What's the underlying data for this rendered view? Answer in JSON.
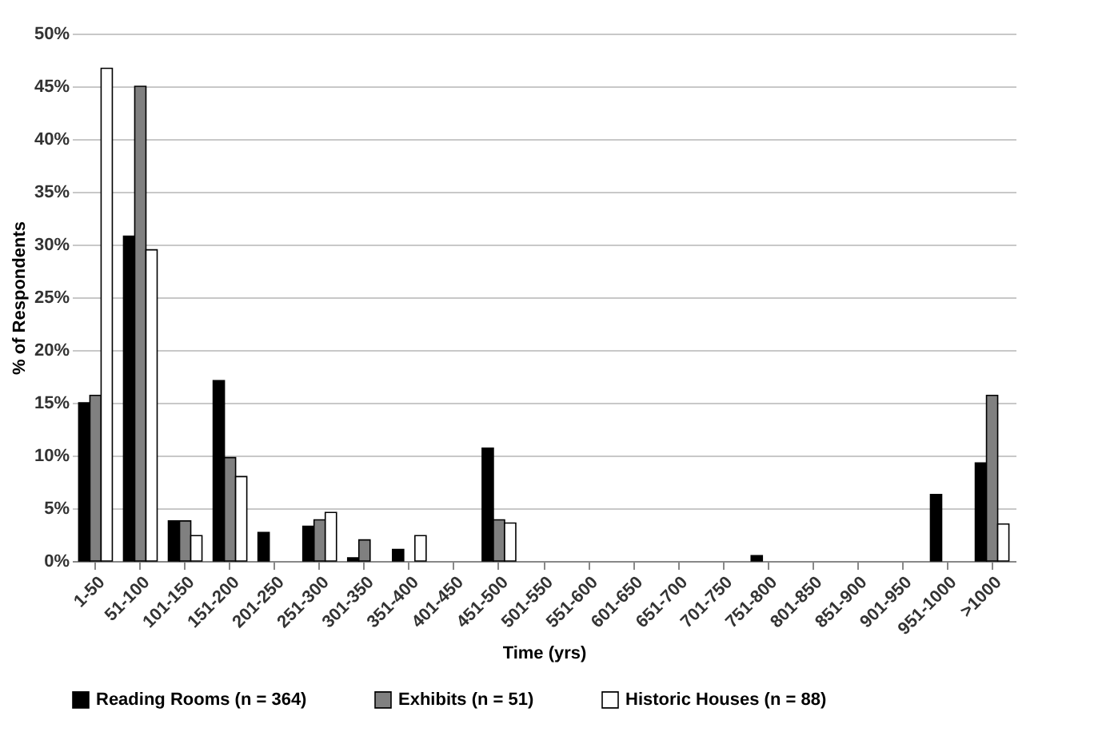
{
  "chart_data": {
    "type": "bar",
    "xlabel": "Time (yrs)",
    "ylabel": "% of Respondents",
    "categories": [
      "1-50",
      "51-100",
      "101-150",
      "151-200",
      "201-250",
      "251-300",
      "301-350",
      "351-400",
      "401-450",
      "451-500",
      "501-550",
      "551-600",
      "601-650",
      "651-700",
      "701-750",
      "751-800",
      "801-850",
      "851-900",
      "901-950",
      "951-1000",
      ">1000"
    ],
    "series": [
      {
        "name": "Reading Rooms (n = 364)",
        "color": "#000000",
        "values": [
          15.0,
          30.8,
          3.8,
          17.1,
          2.7,
          3.3,
          0.3,
          1.1,
          null,
          10.7,
          null,
          null,
          null,
          null,
          null,
          0.5,
          null,
          null,
          null,
          6.3,
          9.3
        ]
      },
      {
        "name": "Exhibits (n = 51)",
        "color": "#808080",
        "values": [
          15.7,
          45.0,
          3.8,
          9.8,
          null,
          3.9,
          2.0,
          null,
          null,
          3.9,
          null,
          null,
          null,
          null,
          null,
          null,
          null,
          null,
          null,
          null,
          15.7
        ]
      },
      {
        "name": "Historic Houses (n = 88)",
        "color": "#ffffff",
        "values": [
          46.7,
          29.5,
          2.4,
          8.0,
          null,
          4.6,
          null,
          2.4,
          null,
          3.6,
          null,
          null,
          null,
          null,
          null,
          null,
          null,
          null,
          null,
          null,
          3.5
        ]
      }
    ],
    "ylim": [
      0,
      50
    ],
    "yticks": [
      {
        "value": 0,
        "label": "0%"
      },
      {
        "value": 5,
        "label": "5%"
      },
      {
        "value": 10,
        "label": "10%"
      },
      {
        "value": 15,
        "label": "15%"
      },
      {
        "value": 20,
        "label": "20%"
      },
      {
        "value": 25,
        "label": "25%"
      },
      {
        "value": 30,
        "label": "30%"
      },
      {
        "value": 35,
        "label": "35%"
      },
      {
        "value": 40,
        "label": "40%"
      },
      {
        "value": 45,
        "label": "45%"
      },
      {
        "value": 50,
        "label": "50%"
      }
    ],
    "grid": "y",
    "legend": "bottom"
  }
}
